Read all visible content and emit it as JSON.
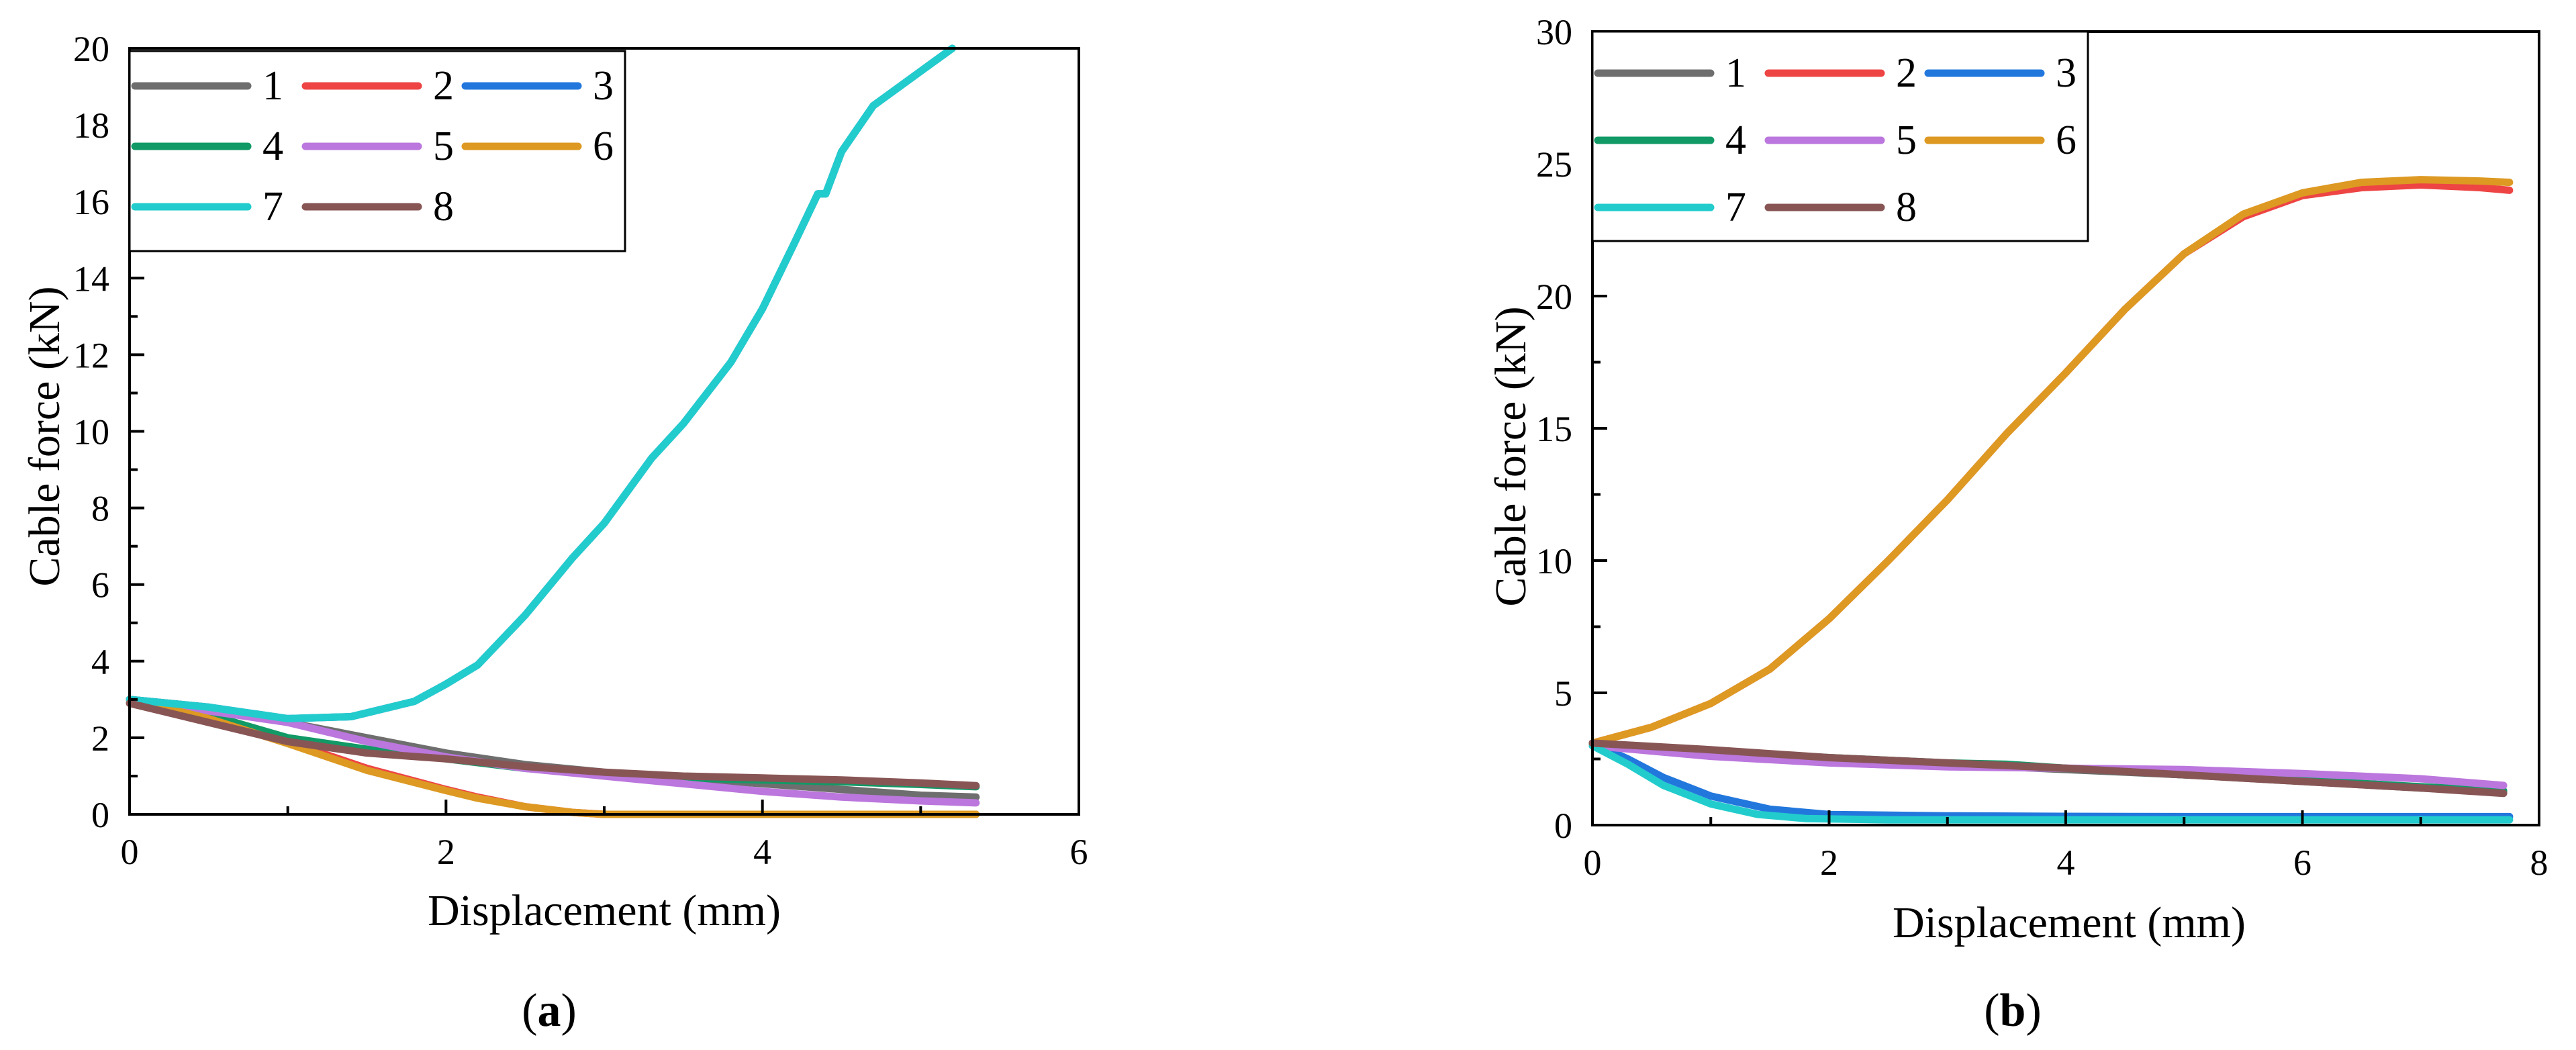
{
  "figure": {
    "captions": [
      {
        "open": "(",
        "letter": "a",
        "close": ")"
      },
      {
        "open": "(",
        "letter": "b",
        "close": ")"
      }
    ]
  },
  "chart_data": [
    {
      "type": "line",
      "panel": "a",
      "xlabel": "Displacement (mm)",
      "ylabel": "Cable force (kN)",
      "xlim": [
        0,
        6
      ],
      "ylim": [
        0,
        20
      ],
      "xticks": [
        0,
        2,
        4,
        6
      ],
      "yticks": [
        0,
        2,
        4,
        6,
        8,
        10,
        12,
        14,
        16,
        18,
        20
      ],
      "grid": false,
      "legend_position": "top-left",
      "legend_columns": 3,
      "series": [
        {
          "name": "1",
          "color": "#6e6e6e",
          "x": [
            0,
            0.5,
            1,
            1.5,
            2,
            2.5,
            3,
            3.5,
            4,
            4.5,
            5,
            5.35
          ],
          "y": [
            3.0,
            2.8,
            2.4,
            2.0,
            1.6,
            1.3,
            1.1,
            0.95,
            0.8,
            0.65,
            0.5,
            0.45
          ]
        },
        {
          "name": "2",
          "color": "#ee4444",
          "x": [
            0,
            0.5,
            1,
            1.5,
            2,
            2.2,
            2.5,
            2.8,
            3,
            3.5,
            4,
            4.5,
            5,
            5.35
          ],
          "y": [
            3.0,
            2.5,
            1.9,
            1.2,
            0.65,
            0.45,
            0.2,
            0.05,
            0,
            0,
            0,
            0,
            0,
            0
          ]
        },
        {
          "name": "3",
          "color": "#2277dd",
          "x": [
            0,
            0.5,
            1,
            1.4,
            1.8,
            2.0,
            2.2,
            2.5,
            2.8,
            3.0,
            3.3,
            3.5,
            3.8,
            4.0,
            4.2,
            4.35,
            4.4,
            4.5,
            4.7,
            5.0,
            5.2
          ],
          "y": [
            3.0,
            2.8,
            2.5,
            2.55,
            2.95,
            3.4,
            3.9,
            5.2,
            6.7,
            7.6,
            9.3,
            10.2,
            11.8,
            13.2,
            14.9,
            16.2,
            16.2,
            17.3,
            18.5,
            19.4,
            20.0
          ]
        },
        {
          "name": "4",
          "color": "#119966",
          "x": [
            0,
            0.5,
            1,
            1.5,
            2,
            2.5,
            3,
            3.5,
            4,
            4.5,
            5,
            5.35
          ],
          "y": [
            3.0,
            2.6,
            2.0,
            1.7,
            1.45,
            1.2,
            1.05,
            0.95,
            0.9,
            0.85,
            0.78,
            0.72
          ]
        },
        {
          "name": "5",
          "color": "#bb77dd",
          "x": [
            0,
            0.5,
            1,
            1.5,
            2,
            2.5,
            3,
            3.5,
            4,
            4.5,
            5,
            5.35
          ],
          "y": [
            3.0,
            2.7,
            2.4,
            1.9,
            1.5,
            1.2,
            1.0,
            0.8,
            0.6,
            0.45,
            0.35,
            0.3
          ]
        },
        {
          "name": "6",
          "color": "#dd9922",
          "x": [
            0,
            0.5,
            1,
            1.5,
            2,
            2.2,
            2.5,
            2.8,
            3,
            3.5,
            4,
            4.5,
            5,
            5.35
          ],
          "y": [
            3.0,
            2.5,
            1.85,
            1.15,
            0.62,
            0.42,
            0.2,
            0.05,
            0,
            0,
            0,
            0,
            0,
            0
          ]
        },
        {
          "name": "7",
          "color": "#22cccc",
          "x": [
            0,
            0.5,
            1,
            1.4,
            1.8,
            2.0,
            2.2,
            2.5,
            2.8,
            3.0,
            3.3,
            3.5,
            3.8,
            4.0,
            4.2,
            4.35,
            4.4,
            4.5,
            4.7,
            5.0,
            5.2
          ],
          "y": [
            3.0,
            2.8,
            2.5,
            2.55,
            2.95,
            3.4,
            3.9,
            5.2,
            6.7,
            7.6,
            9.3,
            10.2,
            11.8,
            13.2,
            14.9,
            16.2,
            16.2,
            17.3,
            18.5,
            19.4,
            20.0
          ]
        },
        {
          "name": "8",
          "color": "#885555",
          "x": [
            0,
            0.5,
            1,
            1.5,
            2,
            2.5,
            3,
            3.5,
            4,
            4.5,
            5,
            5.35
          ],
          "y": [
            2.9,
            2.4,
            1.9,
            1.6,
            1.45,
            1.25,
            1.1,
            1.0,
            0.95,
            0.9,
            0.82,
            0.75
          ]
        }
      ]
    },
    {
      "type": "line",
      "panel": "b",
      "xlabel": "Displacement (mm)",
      "ylabel": "Cable force (kN)",
      "xlim": [
        0,
        8
      ],
      "ylim": [
        0,
        30
      ],
      "xticks": [
        0,
        2,
        4,
        6,
        8
      ],
      "yticks": [
        0,
        5,
        10,
        15,
        20,
        25,
        30
      ],
      "grid": false,
      "legend_position": "top-left",
      "legend_columns": 3,
      "series": [
        {
          "name": "1",
          "color": "#6e6e6e",
          "x": [
            0,
            1,
            2,
            3,
            4,
            5,
            6,
            7,
            7.7
          ],
          "y": [
            3.1,
            2.8,
            2.5,
            2.3,
            2.1,
            1.9,
            1.65,
            1.4,
            1.25
          ]
        },
        {
          "name": "2",
          "color": "#ee4444",
          "x": [
            0,
            0.5,
            1,
            1.5,
            2,
            2.5,
            3,
            3.5,
            4,
            4.5,
            5,
            5.5,
            6,
            6.5,
            7,
            7.5,
            7.75
          ],
          "y": [
            3.1,
            3.7,
            4.6,
            5.9,
            7.8,
            10.0,
            12.3,
            14.8,
            17.1,
            19.5,
            21.6,
            23.0,
            23.8,
            24.1,
            24.2,
            24.1,
            24.0
          ]
        },
        {
          "name": "3",
          "color": "#2277dd",
          "x": [
            0,
            0.3,
            0.6,
            1.0,
            1.5,
            2.0,
            3,
            4,
            5,
            6,
            7,
            7.75
          ],
          "y": [
            3.1,
            2.5,
            1.8,
            1.1,
            0.6,
            0.4,
            0.35,
            0.33,
            0.32,
            0.32,
            0.32,
            0.32
          ]
        },
        {
          "name": "4",
          "color": "#119966",
          "x": [
            0,
            1,
            2,
            3,
            3.5,
            4,
            5,
            6,
            7,
            7.7
          ],
          "y": [
            3.1,
            2.8,
            2.55,
            2.35,
            2.3,
            2.15,
            1.9,
            1.7,
            1.45,
            1.3
          ]
        },
        {
          "name": "5",
          "color": "#bb77dd",
          "x": [
            0,
            1,
            2,
            3,
            4,
            5,
            6,
            7,
            7.7
          ],
          "y": [
            3.0,
            2.6,
            2.35,
            2.2,
            2.15,
            2.1,
            1.95,
            1.75,
            1.5
          ]
        },
        {
          "name": "6",
          "color": "#dd9922",
          "x": [
            0,
            0.5,
            1,
            1.5,
            2,
            2.5,
            3,
            3.5,
            4,
            4.5,
            5,
            5.5,
            6,
            6.5,
            7,
            7.5,
            7.75
          ],
          "y": [
            3.1,
            3.7,
            4.6,
            5.9,
            7.8,
            10.0,
            12.3,
            14.8,
            17.1,
            19.5,
            21.6,
            23.1,
            23.9,
            24.3,
            24.4,
            24.35,
            24.3
          ]
        },
        {
          "name": "7",
          "color": "#22cccc",
          "x": [
            0,
            0.3,
            0.6,
            1.0,
            1.4,
            1.8,
            2.5,
            3,
            4,
            5,
            6,
            7,
            7.75
          ],
          "y": [
            3.0,
            2.3,
            1.5,
            0.8,
            0.4,
            0.25,
            0.2,
            0.2,
            0.2,
            0.2,
            0.2,
            0.2,
            0.2
          ]
        },
        {
          "name": "8",
          "color": "#885555",
          "x": [
            0,
            1,
            2,
            3,
            4,
            5,
            6,
            7,
            7.7
          ],
          "y": [
            3.1,
            2.85,
            2.55,
            2.35,
            2.15,
            1.9,
            1.65,
            1.4,
            1.2
          ]
        }
      ]
    }
  ]
}
